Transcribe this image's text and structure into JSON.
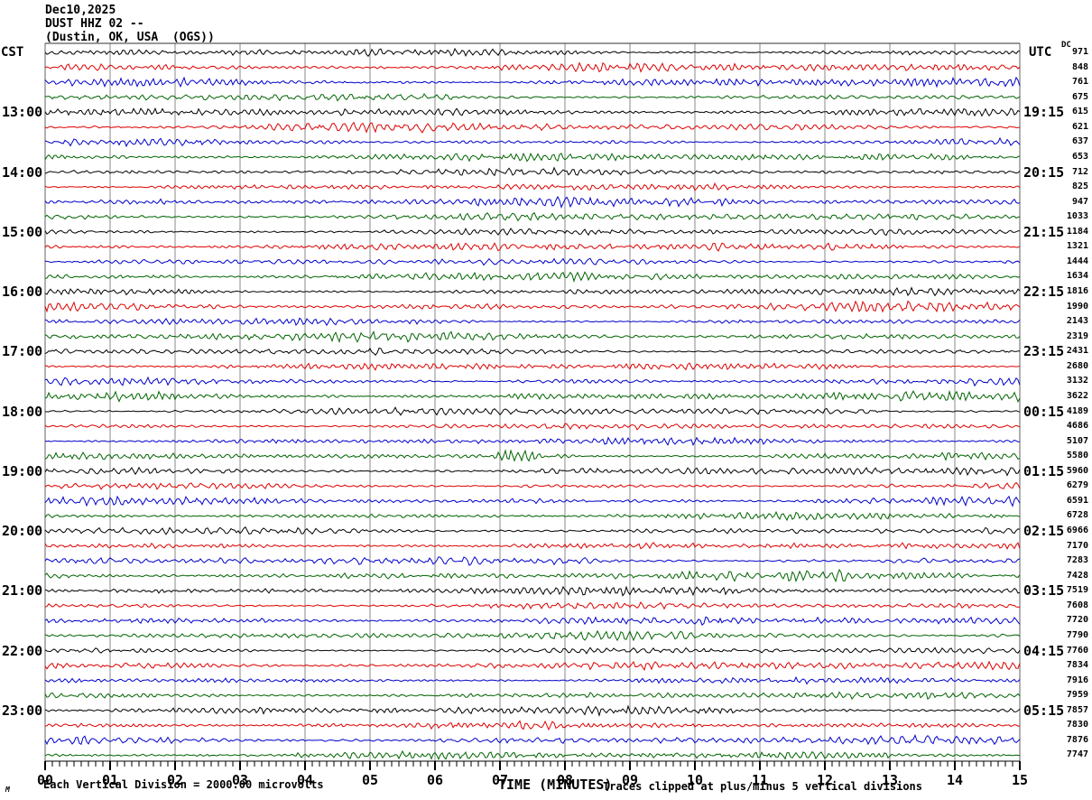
{
  "header": {
    "line1": "Dec10,2025",
    "line2": "DUST HHZ 02 --",
    "line3": "(Dustin, OK, USA  (OGS))",
    "left_axis": "CST",
    "right_axis": "UTC",
    "dc_label": "DC"
  },
  "footer": {
    "scale_note": "Each Vertical Division = 2000.00 microvolts",
    "time_axis_label": "TIME (MINUTES)",
    "clip_note": "Traces clipped at plus/minus 5 vertical divisions",
    "corner_mark": "M"
  },
  "chart_data": {
    "type": "line",
    "variant": "helicorder-seismogram",
    "date": "Dec10,2025",
    "title": "DUST HHZ 02 --",
    "subtitle": "(Dustin, OK, USA  (OGS))",
    "xlabel": "TIME (MINUTES)",
    "x_range": [
      0,
      15
    ],
    "x_tick_labels": [
      "00",
      "01",
      "02",
      "03",
      "04",
      "05",
      "06",
      "07",
      "08",
      "09",
      "10",
      "11",
      "12",
      "13",
      "14",
      "15"
    ],
    "minor_ticks_per_major_interval": 8,
    "minutes_per_line": 15,
    "num_lines": 48,
    "line_start_cst": "12:00",
    "label_every_n_lines": 4,
    "first_labeled_line_index": 4,
    "left_time_labels_cst": [
      "13:00",
      "14:00",
      "15:00",
      "16:00",
      "17:00",
      "18:00",
      "19:00",
      "20:00",
      "21:00",
      "22:00",
      "23:00"
    ],
    "right_time_labels_utc": [
      "19:15",
      "20:15",
      "21:15",
      "22:15",
      "23:15",
      "00:15",
      "01:15",
      "02:15",
      "03:15",
      "04:15",
      "05:15"
    ],
    "trace_color_cycle": [
      "#000000",
      "#dd0000",
      "#0000cc",
      "#006400"
    ],
    "grid_color": "#8a8a8a",
    "axis_color": "#000000",
    "dc_offsets": [
      971,
      848,
      761,
      675,
      615,
      621,
      637,
      653,
      712,
      825,
      947,
      1033,
      1184,
      1321,
      1444,
      1634,
      1816,
      1990,
      2143,
      2319,
      2431,
      2680,
      3132,
      3622,
      4189,
      4686,
      5107,
      5580,
      5960,
      6279,
      6591,
      6728,
      6966,
      7170,
      7283,
      7428,
      7519,
      7608,
      7720,
      7790,
      7760,
      7834,
      7916,
      7959,
      7857,
      7830,
      7876,
      7747
    ],
    "vertical_scale_note": "Each Vertical Division = 2000.00 microvolts",
    "clipping_note": "Traces clipped at plus/minus 5 vertical divisions",
    "events": [
      {
        "line_index": 27,
        "line_start_cst": "18:45",
        "trace_color": "#006400",
        "start_minute": 6.85,
        "peak_minute": 7.15,
        "end_minute": 8.8,
        "description": "small high-frequency burst on the 18:45 CST (green) trace"
      }
    ]
  }
}
